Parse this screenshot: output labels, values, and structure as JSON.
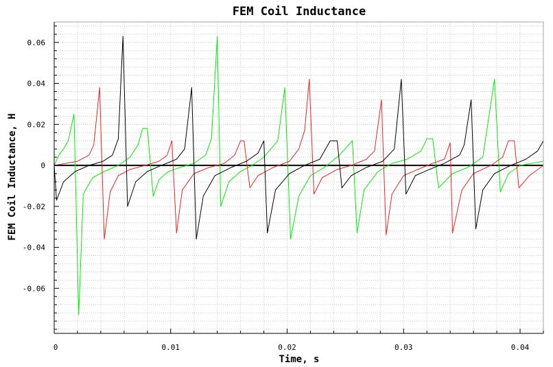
{
  "chart_data": {
    "type": "line",
    "title": "FEM Coil Inductance",
    "xlabel": "Time, s",
    "ylabel": "FEM Coil Inductance, H",
    "xlim": [
      0,
      0.042
    ],
    "ylim": [
      -0.082,
      0.07
    ],
    "xticks": [
      0,
      0.01,
      0.02,
      0.03,
      0.04
    ],
    "xtick_labels": [
      "0",
      "0.01",
      "0.02",
      "0.03",
      "0.04"
    ],
    "yticks": [
      -0.06,
      -0.04,
      -0.02,
      0,
      0.02,
      0.04,
      0.06
    ],
    "ytick_labels": [
      "-0.06",
      "-0.04",
      "-0.02",
      "0",
      "0.02",
      "0.04",
      "0.06"
    ],
    "grid": true,
    "legend": "none",
    "series": [
      {
        "color": "#00ee00",
        "points": [
          [
            0.0,
            0.0
          ],
          [
            0.0004,
            0.005
          ],
          [
            0.0008,
            0.008
          ],
          [
            0.0012,
            0.012
          ],
          [
            0.0017,
            0.025
          ],
          [
            0.0021,
            -0.073
          ],
          [
            0.0025,
            -0.014
          ],
          [
            0.0033,
            -0.006
          ],
          [
            0.0043,
            -0.003
          ],
          [
            0.0055,
            0.0
          ],
          [
            0.0065,
            0.004
          ],
          [
            0.0072,
            0.01
          ],
          [
            0.0076,
            0.018
          ],
          [
            0.008,
            0.018
          ],
          [
            0.0085,
            -0.015
          ],
          [
            0.009,
            -0.007
          ],
          [
            0.0098,
            -0.003
          ],
          [
            0.0108,
            -0.001
          ],
          [
            0.012,
            0.001
          ],
          [
            0.013,
            0.005
          ],
          [
            0.0135,
            0.013
          ],
          [
            0.014,
            0.063
          ],
          [
            0.0143,
            -0.02
          ],
          [
            0.015,
            -0.008
          ],
          [
            0.016,
            -0.003
          ],
          [
            0.017,
            0.0
          ],
          [
            0.018,
            0.004
          ],
          [
            0.0192,
            0.012
          ],
          [
            0.0198,
            0.038
          ],
          [
            0.0203,
            -0.036
          ],
          [
            0.021,
            -0.015
          ],
          [
            0.022,
            -0.005
          ],
          [
            0.0232,
            -0.001
          ],
          [
            0.0245,
            0.005
          ],
          [
            0.0256,
            0.012
          ],
          [
            0.026,
            -0.033
          ],
          [
            0.0266,
            -0.012
          ],
          [
            0.0278,
            -0.003
          ],
          [
            0.029,
            0.001
          ],
          [
            0.0303,
            0.003
          ],
          [
            0.0315,
            0.007
          ],
          [
            0.032,
            0.013
          ],
          [
            0.0325,
            0.013
          ],
          [
            0.033,
            -0.011
          ],
          [
            0.0342,
            -0.004
          ],
          [
            0.0355,
            -0.001
          ],
          [
            0.0368,
            0.004
          ],
          [
            0.0378,
            0.042
          ],
          [
            0.0383,
            -0.013
          ],
          [
            0.039,
            -0.004
          ],
          [
            0.04,
            0.0
          ],
          [
            0.041,
            0.001
          ],
          [
            0.042,
            0.002
          ]
        ]
      },
      {
        "color": "#ee2222",
        "points": [
          [
            0.0,
            0.0
          ],
          [
            0.002,
            0.002
          ],
          [
            0.003,
            0.005
          ],
          [
            0.0034,
            0.01
          ],
          [
            0.0039,
            0.038
          ],
          [
            0.0043,
            -0.036
          ],
          [
            0.0048,
            -0.013
          ],
          [
            0.0055,
            -0.005
          ],
          [
            0.0065,
            -0.002
          ],
          [
            0.0078,
            0.0
          ],
          [
            0.009,
            0.002
          ],
          [
            0.0097,
            0.005
          ],
          [
            0.0101,
            0.012
          ],
          [
            0.0105,
            -0.033
          ],
          [
            0.011,
            -0.012
          ],
          [
            0.012,
            -0.004
          ],
          [
            0.0133,
            -0.001
          ],
          [
            0.0146,
            0.001
          ],
          [
            0.0155,
            0.005
          ],
          [
            0.016,
            0.012
          ],
          [
            0.0163,
            0.012
          ],
          [
            0.0168,
            -0.011
          ],
          [
            0.0175,
            -0.005
          ],
          [
            0.0188,
            -0.001
          ],
          [
            0.0202,
            0.002
          ],
          [
            0.021,
            0.008
          ],
          [
            0.0215,
            0.017
          ],
          [
            0.0219,
            0.042
          ],
          [
            0.0223,
            -0.014
          ],
          [
            0.023,
            -0.006
          ],
          [
            0.0243,
            -0.002
          ],
          [
            0.0255,
            0.0
          ],
          [
            0.0268,
            0.003
          ],
          [
            0.0275,
            0.007
          ],
          [
            0.0281,
            0.032
          ],
          [
            0.0285,
            -0.034
          ],
          [
            0.029,
            -0.014
          ],
          [
            0.03,
            -0.005
          ],
          [
            0.0312,
            -0.002
          ],
          [
            0.0325,
            0.001
          ],
          [
            0.0335,
            0.003
          ],
          [
            0.034,
            0.011
          ],
          [
            0.0342,
            -0.033
          ],
          [
            0.035,
            -0.012
          ],
          [
            0.036,
            -0.004
          ],
          [
            0.0375,
            0.0
          ],
          [
            0.0385,
            0.004
          ],
          [
            0.039,
            0.012
          ],
          [
            0.0395,
            0.012
          ],
          [
            0.0399,
            -0.011
          ],
          [
            0.0408,
            -0.005
          ],
          [
            0.042,
            0.0
          ]
        ]
      },
      {
        "color": "#000000",
        "points": [
          [
            0.0,
            0.0
          ],
          [
            0.0002,
            -0.017
          ],
          [
            0.0008,
            -0.008
          ],
          [
            0.0018,
            -0.003
          ],
          [
            0.003,
            0.0
          ],
          [
            0.0042,
            0.002
          ],
          [
            0.005,
            0.005
          ],
          [
            0.0055,
            0.013
          ],
          [
            0.0059,
            0.063
          ],
          [
            0.0063,
            -0.02
          ],
          [
            0.007,
            -0.008
          ],
          [
            0.008,
            -0.003
          ],
          [
            0.0092,
            0.0
          ],
          [
            0.0105,
            0.003
          ],
          [
            0.0112,
            0.008
          ],
          [
            0.0118,
            0.038
          ],
          [
            0.0122,
            -0.036
          ],
          [
            0.0128,
            -0.015
          ],
          [
            0.0138,
            -0.005
          ],
          [
            0.0152,
            -0.001
          ],
          [
            0.0165,
            0.002
          ],
          [
            0.0175,
            0.006
          ],
          [
            0.018,
            0.012
          ],
          [
            0.0183,
            -0.033
          ],
          [
            0.019,
            -0.012
          ],
          [
            0.0202,
            -0.004
          ],
          [
            0.0215,
            0.0
          ],
          [
            0.0228,
            0.003
          ],
          [
            0.0237,
            0.012
          ],
          [
            0.0243,
            0.012
          ],
          [
            0.0247,
            -0.011
          ],
          [
            0.0255,
            -0.005
          ],
          [
            0.0268,
            -0.001
          ],
          [
            0.0282,
            0.002
          ],
          [
            0.0292,
            0.008
          ],
          [
            0.0298,
            0.042
          ],
          [
            0.0302,
            -0.014
          ],
          [
            0.031,
            -0.005
          ],
          [
            0.0322,
            -0.002
          ],
          [
            0.0335,
            0.001
          ],
          [
            0.0348,
            0.005
          ],
          [
            0.0352,
            0.01
          ],
          [
            0.0358,
            0.032
          ],
          [
            0.0362,
            -0.031
          ],
          [
            0.0368,
            -0.012
          ],
          [
            0.0378,
            -0.004
          ],
          [
            0.0392,
            0.0
          ],
          [
            0.0405,
            0.003
          ],
          [
            0.0415,
            0.007
          ],
          [
            0.042,
            0.012
          ]
        ]
      }
    ]
  }
}
